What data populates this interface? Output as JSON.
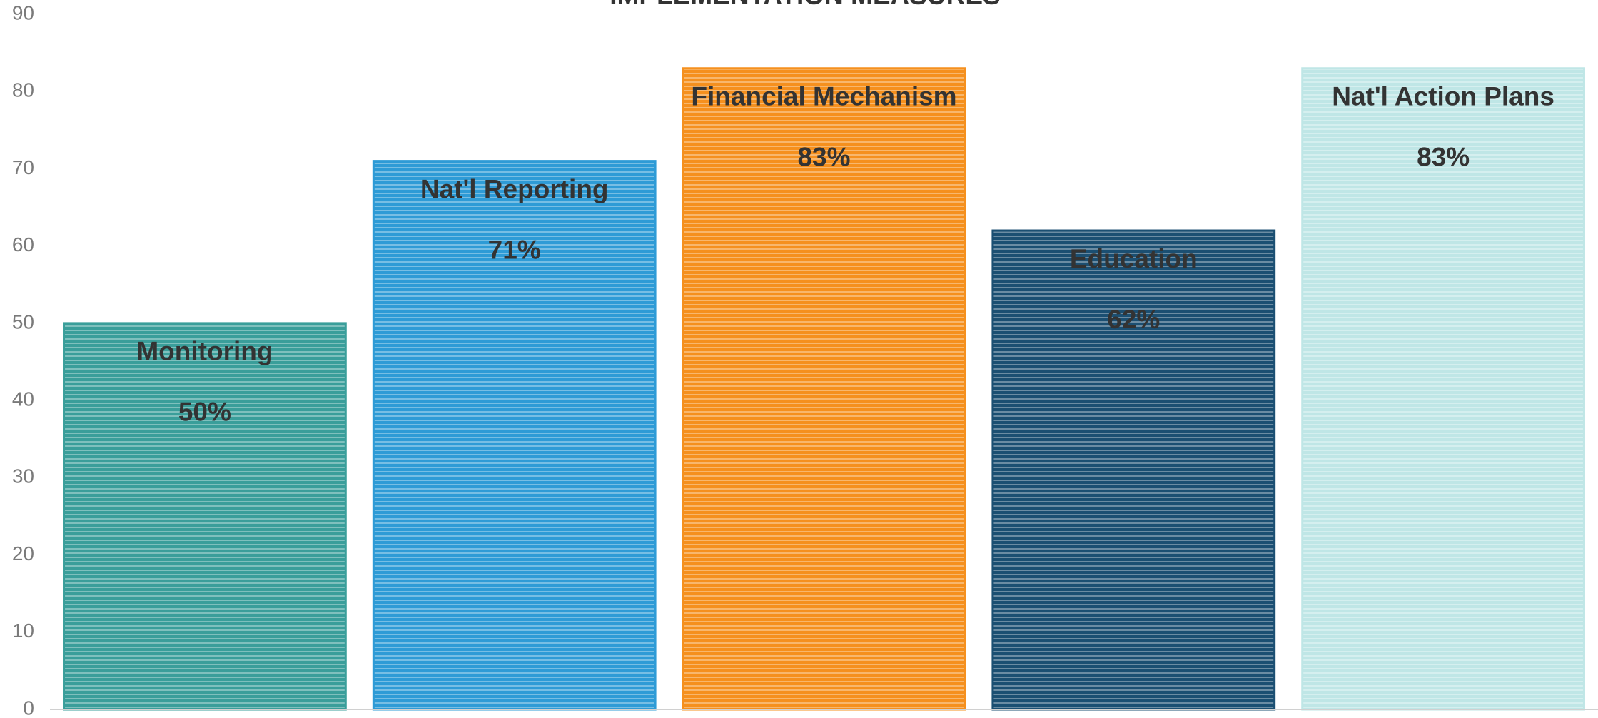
{
  "chart_data": {
    "type": "bar",
    "title": "IMPLEMENTATION MEASURES",
    "categories": [
      "Monitoring",
      "Nat'l Reporting",
      "Financial Mechanism",
      "Education",
      "Nat'l Action Plans"
    ],
    "values": [
      50,
      71,
      83,
      62,
      83
    ],
    "value_labels": [
      "50%",
      "71%",
      "83%",
      "62%",
      "83%"
    ],
    "colors": [
      "#3a9e9a",
      "#2e9bd6",
      "#f5901e",
      "#1b4f72",
      "#bfe6e6"
    ],
    "ylim": [
      0,
      90
    ],
    "yticks": [
      0,
      10,
      20,
      30,
      40,
      50,
      60,
      70,
      80,
      90
    ],
    "grid": false
  }
}
